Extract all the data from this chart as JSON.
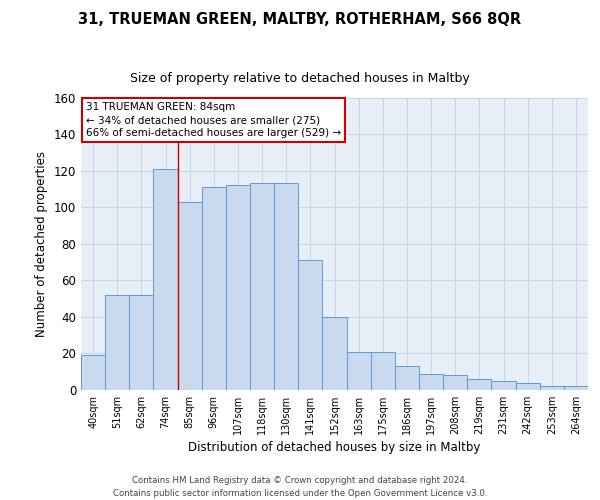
{
  "title1": "31, TRUEMAN GREEN, MALTBY, ROTHERHAM, S66 8QR",
  "title2": "Size of property relative to detached houses in Maltby",
  "xlabel": "Distribution of detached houses by size in Maltby",
  "ylabel": "Number of detached properties",
  "categories": [
    "40sqm",
    "51sqm",
    "62sqm",
    "74sqm",
    "85sqm",
    "96sqm",
    "107sqm",
    "118sqm",
    "130sqm",
    "141sqm",
    "152sqm",
    "163sqm",
    "175sqm",
    "186sqm",
    "197sqm",
    "208sqm",
    "219sqm",
    "231sqm",
    "242sqm",
    "253sqm",
    "264sqm"
  ],
  "values": [
    19,
    52,
    52,
    121,
    103,
    111,
    112,
    113,
    113,
    71,
    40,
    21,
    21,
    13,
    9,
    8,
    6,
    5,
    4,
    2,
    2
  ],
  "bar_color": "#c9d9ee",
  "bar_edge_color": "#5b9bd5",
  "grid_color": "#c8d4e8",
  "background_color": "#e8eef8",
  "vline_color": "#cc0000",
  "vline_x": 3.5,
  "annotation_line1": "31 TRUEMAN GREEN: 84sqm",
  "annotation_line2": "← 34% of detached houses are smaller (275)",
  "annotation_line3": "66% of semi-detached houses are larger (529) →",
  "annotation_box_color": "#ffffff",
  "annotation_box_edge": "#cc0000",
  "footer_text": "Contains HM Land Registry data © Crown copyright and database right 2024.\nContains public sector information licensed under the Open Government Licence v3.0.",
  "ylim": [
    0,
    160
  ],
  "yticks": [
    0,
    20,
    40,
    60,
    80,
    100,
    120,
    140,
    160
  ]
}
